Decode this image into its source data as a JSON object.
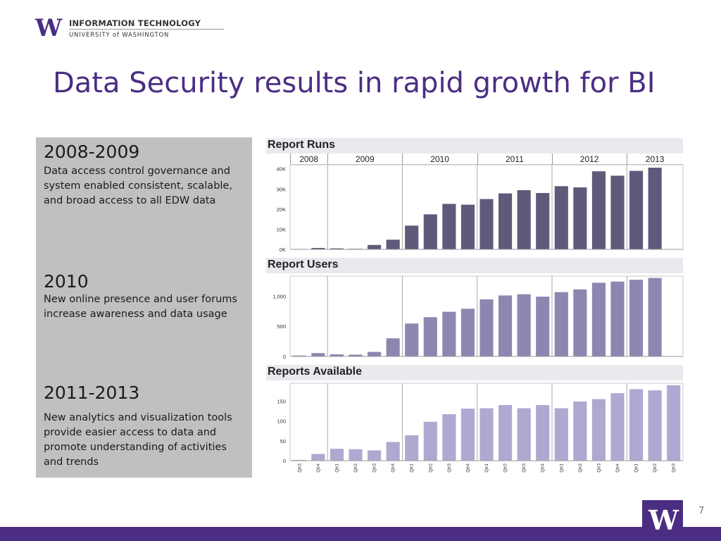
{
  "header": {
    "logo_letter": "W",
    "logo_line1": "INFORMATION TECHNOLOGY",
    "logo_line2": "UNIVERSITY of WASHINGTON"
  },
  "title": "Data Security results in rapid growth for BI",
  "left_panel": {
    "blocks": [
      {
        "heading": "2008-2009",
        "text": "Data access control governance and system enabled consistent, scalable, and broad access to all EDW  data"
      },
      {
        "heading": "2010",
        "text": "New online presence and user forums increase  awareness and data usage"
      },
      {
        "heading": "2011-2013",
        "text": "New analytics and visualization tools provide easier access to data and promote understanding of activities and trends"
      }
    ]
  },
  "years": [
    {
      "label": "2008",
      "quarters": 2
    },
    {
      "label": "2009",
      "quarters": 4
    },
    {
      "label": "2010",
      "quarters": 4
    },
    {
      "label": "2011",
      "quarters": 4
    },
    {
      "label": "2012",
      "quarters": 4
    },
    {
      "label": "2013",
      "quarters": 3
    }
  ],
  "chart_data": [
    {
      "type": "bar",
      "title": "Report Runs",
      "categories": [
        "Qtr3",
        "Qtr4",
        "Qtr1",
        "Qtr2",
        "Qtr3",
        "Qtr4",
        "Qtr1",
        "Qtr2",
        "Qtr3",
        "Qtr4",
        "Qtr1",
        "Qtr2",
        "Qtr3",
        "Qtr4",
        "Qtr1",
        "Qtr2",
        "Qtr3",
        "Qtr4",
        "Qtr1",
        "Qtr2",
        "Qtr3"
      ],
      "values": [
        200,
        700,
        500,
        300,
        2200,
        4800,
        11800,
        17400,
        22600,
        22200,
        25000,
        27800,
        29400,
        28000,
        31400,
        30800,
        38800,
        36600,
        39000,
        40600,
        0
      ],
      "ylim": [
        0,
        42000
      ],
      "ticks": [
        {
          "v": 0,
          "label": "0K"
        },
        {
          "v": 10000,
          "label": "10K"
        },
        {
          "v": 20000,
          "label": "20K"
        },
        {
          "v": 30000,
          "label": "30K"
        },
        {
          "v": 40000,
          "label": "40K"
        }
      ],
      "color": "#5f597a",
      "show_category_labels": false
    },
    {
      "type": "bar",
      "title": "Report Users",
      "categories": [
        "Qtr3",
        "Qtr4",
        "Qtr1",
        "Qtr2",
        "Qtr3",
        "Qtr4",
        "Qtr1",
        "Qtr2",
        "Qtr3",
        "Qtr4",
        "Qtr1",
        "Qtr2",
        "Qtr3",
        "Qtr4",
        "Qtr1",
        "Qtr2",
        "Qtr3",
        "Qtr4",
        "Qtr1",
        "Qtr2",
        "Qtr3"
      ],
      "values": [
        15,
        55,
        35,
        30,
        75,
        300,
        545,
        650,
        740,
        790,
        945,
        1010,
        1030,
        990,
        1065,
        1110,
        1220,
        1240,
        1270,
        1300,
        0
      ],
      "ylim": [
        0,
        1330
      ],
      "ticks": [
        {
          "v": 0,
          "label": "0"
        },
        {
          "v": 500,
          "label": "500"
        },
        {
          "v": 1000,
          "label": "1,000"
        }
      ],
      "color": "#8c87b0",
      "show_category_labels": false
    },
    {
      "type": "bar",
      "title": "Reports Available",
      "categories": [
        "Qtr3",
        "Qtr4",
        "Qtr1",
        "Qtr2",
        "Qtr3",
        "Qtr4",
        "Qtr1",
        "Qtr2",
        "Qtr3",
        "Qtr4",
        "Qtr1",
        "Qtr2",
        "Qtr3",
        "Qtr4",
        "Qtr1",
        "Qtr2",
        "Qtr3",
        "Qtr4",
        "Qtr1",
        "Qtr2",
        "Qtr3"
      ],
      "values": [
        2,
        17,
        30,
        29,
        26,
        47,
        64,
        98,
        117,
        131,
        132,
        140,
        132,
        140,
        132,
        149,
        155,
        170,
        180,
        177,
        190
      ],
      "ylim": [
        0,
        195
      ],
      "ticks": [
        {
          "v": 0,
          "label": "0"
        },
        {
          "v": 50,
          "label": "50"
        },
        {
          "v": 100,
          "label": "100"
        },
        {
          "v": 150,
          "label": "150"
        }
      ],
      "color": "#aea9d1",
      "show_category_labels": true
    }
  ],
  "footer": {
    "logo_letter": "W",
    "page_number": "7"
  }
}
